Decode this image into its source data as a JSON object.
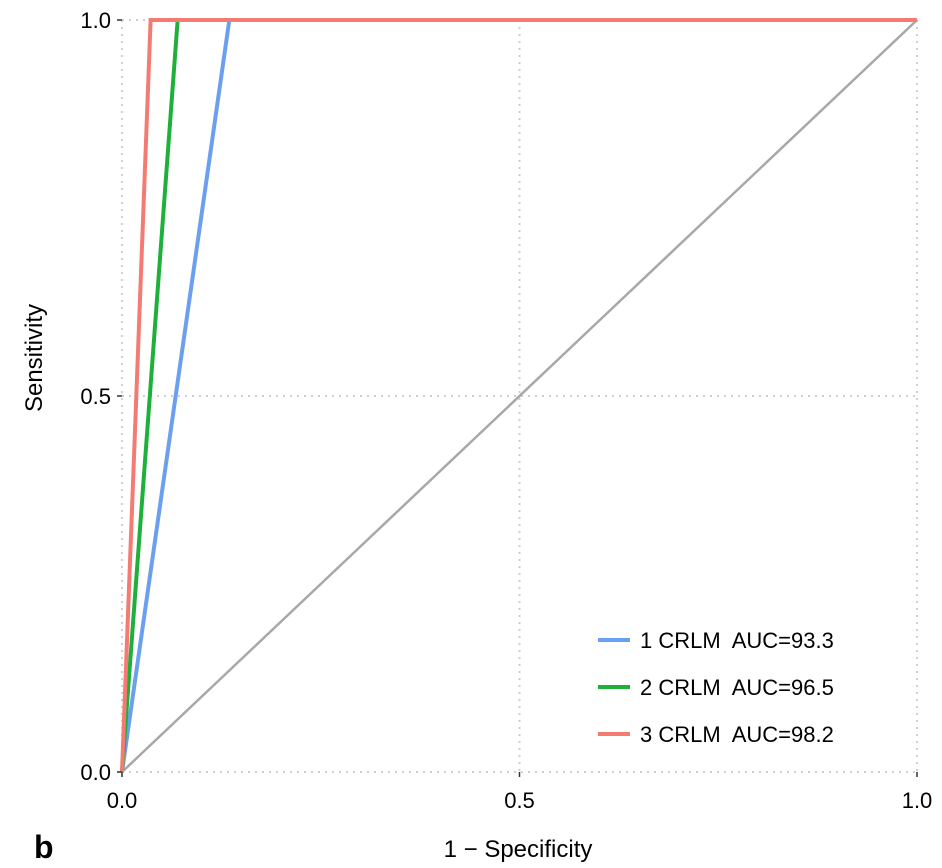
{
  "panel_label": "b",
  "colors": {
    "diagonal": "#a8a8a8",
    "grid": "#cfcfcf"
  },
  "chart_data": {
    "type": "line",
    "xlabel": "1 − Specificity",
    "ylabel": "Sensitivity",
    "xlim": [
      0,
      1
    ],
    "ylim": [
      0,
      1
    ],
    "xticks": [
      0.0,
      0.5,
      1.0
    ],
    "xtick_labels": [
      "0.0",
      "0.5",
      "1.0"
    ],
    "yticks": [
      0.0,
      0.5,
      1.0
    ],
    "ytick_labels": [
      "0.0",
      "0.5",
      "1.0"
    ],
    "grid": true,
    "legend_position": "bottom-right",
    "series": [
      {
        "name": "1 CRLM  AUC=93.3",
        "color": "#6aa0ef",
        "x": [
          0,
          0.135,
          1.0
        ],
        "y": [
          0,
          1.0,
          1.0
        ]
      },
      {
        "name": "2 CRLM  AUC=96.5",
        "color": "#1fb03c",
        "x": [
          0,
          0.07,
          1.0
        ],
        "y": [
          0,
          1.0,
          1.0
        ]
      },
      {
        "name": "3 CRLM  AUC=98.2",
        "color": "#f47b72",
        "x": [
          0,
          0.036,
          1.0
        ],
        "y": [
          0,
          1.0,
          1.0
        ]
      }
    ],
    "reference_line": {
      "x": [
        0,
        1
      ],
      "y": [
        0,
        1
      ]
    }
  }
}
